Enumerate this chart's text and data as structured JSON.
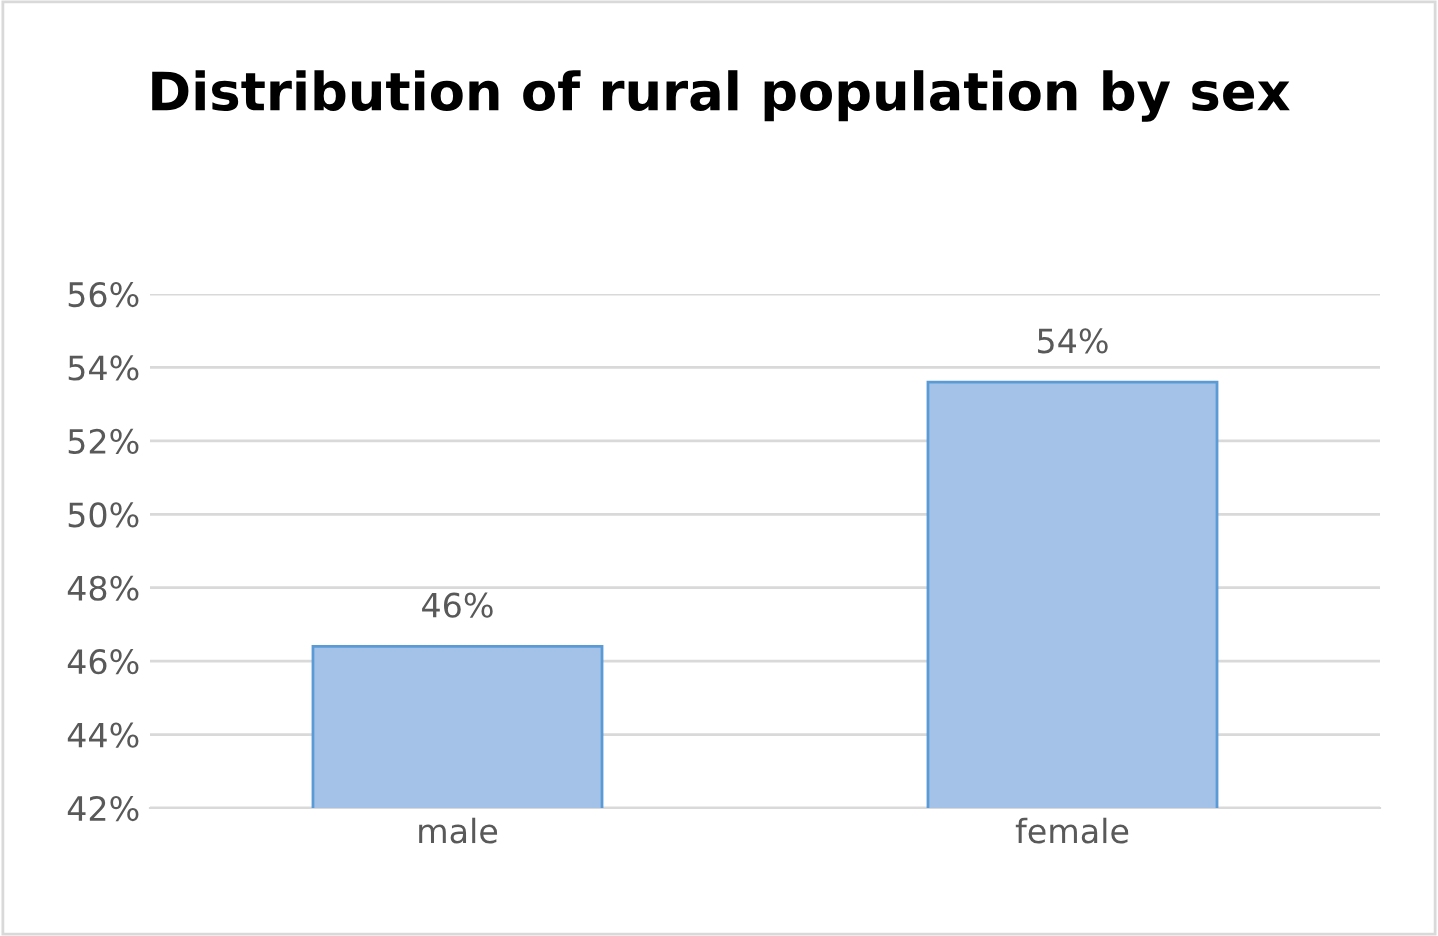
{
  "chart_data": {
    "type": "bar",
    "title": "Distribution of rural population by sex",
    "categories": [
      "male",
      "female"
    ],
    "values": [
      46.4,
      53.6
    ],
    "value_labels": [
      "46%",
      "54%"
    ],
    "color": "#a4c2e8",
    "ylim": [
      42,
      56
    ],
    "yticks": [
      {
        "value": 42,
        "label": "42%"
      },
      {
        "value": 44,
        "label": "44%"
      },
      {
        "value": 46,
        "label": "46%"
      },
      {
        "value": 48,
        "label": "48%"
      },
      {
        "value": 50,
        "label": "50%"
      },
      {
        "value": 52,
        "label": "52%"
      },
      {
        "value": 54,
        "label": "54%"
      },
      {
        "value": 56,
        "label": "56%"
      }
    ],
    "grid": "y"
  }
}
